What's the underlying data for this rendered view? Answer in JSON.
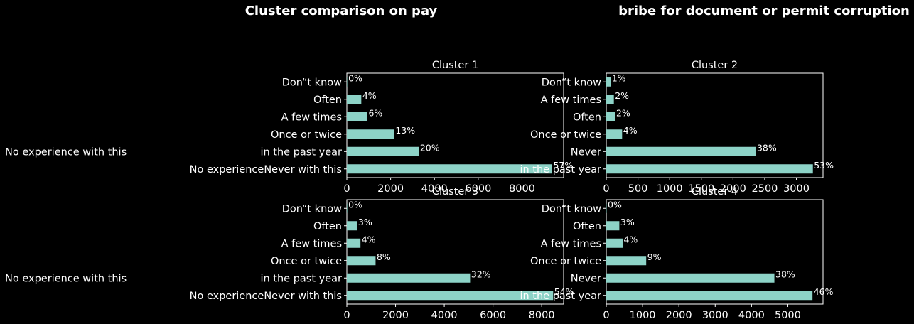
{
  "figure": {
    "title_left": "Cluster comparison on pay",
    "title_right": "bribe for document or permit corruption"
  },
  "colors": {
    "background": "#000000",
    "bar": "#8dd3c7",
    "text": "#ffffff"
  },
  "chart_data": [
    {
      "type": "bar",
      "orientation": "horizontal",
      "title": "Cluster 1",
      "categories": [
        "No experienceNever with this",
        "in the past year",
        "Once or twice",
        "A few times",
        "Often",
        "Don“t know"
      ],
      "values": [
        9380,
        3290,
        2170,
        940,
        660,
        20
      ],
      "bar_labels": [
        "57%",
        "20%",
        "13%",
        "6%",
        "4%",
        "0%"
      ],
      "xlim": [
        0,
        9900
      ],
      "xticks": [
        0,
        2000,
        4000,
        6000,
        8000
      ],
      "outside_label": "No experience with this"
    },
    {
      "type": "bar",
      "orientation": "horizontal",
      "title": "Cluster 2",
      "categories": [
        "in the past year",
        "Never",
        "Once or twice",
        "Often",
        "A few times",
        "Don“t know"
      ],
      "values": [
        3260,
        2360,
        250,
        140,
        120,
        70
      ],
      "bar_labels": [
        "53%",
        "38%",
        "4%",
        "2%",
        "2%",
        "1%"
      ],
      "xlim": [
        0,
        3420
      ],
      "xticks": [
        0,
        500,
        1000,
        1500,
        2000,
        2500,
        3000
      ]
    },
    {
      "type": "bar",
      "orientation": "horizontal",
      "title": "Cluster 3",
      "categories": [
        "No experienceNever with this",
        "in the past year",
        "Once or twice",
        "A few times",
        "Often",
        "Don“t know"
      ],
      "values": [
        8470,
        5060,
        1180,
        560,
        420,
        20
      ],
      "bar_labels": [
        "54%",
        "32%",
        "8%",
        "4%",
        "3%",
        "0%"
      ],
      "xlim": [
        0,
        8900
      ],
      "xticks": [
        0,
        2000,
        4000,
        6000,
        8000
      ],
      "outside_label": "No experience with this"
    },
    {
      "type": "bar",
      "orientation": "horizontal",
      "title": "Cluster 4",
      "categories": [
        "in the past year",
        "Never",
        "Once or twice",
        "A few times",
        "Often",
        "Don“t know"
      ],
      "values": [
        5680,
        4630,
        1100,
        450,
        360,
        10
      ],
      "bar_labels": [
        "46%",
        "38%",
        "9%",
        "4%",
        "3%",
        "0%"
      ],
      "xlim": [
        0,
        5970
      ],
      "xticks": [
        0,
        1000,
        2000,
        3000,
        4000,
        5000
      ]
    }
  ]
}
